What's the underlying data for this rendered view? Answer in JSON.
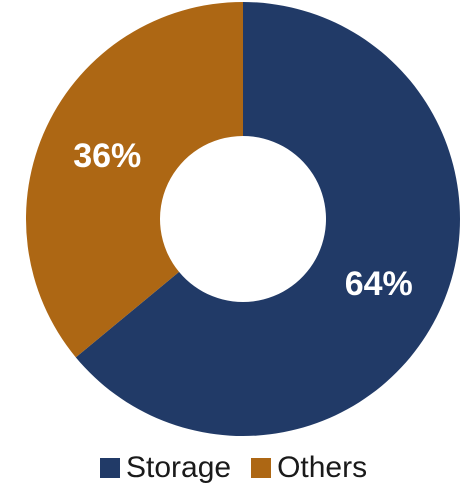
{
  "chart_data": {
    "type": "pie",
    "variant": "donut",
    "title": "",
    "categories": [
      "Storage",
      "Others"
    ],
    "values": [
      64,
      36
    ],
    "labels": [
      "64%",
      "36%"
    ],
    "colors": [
      "#213a67",
      "#ad6714"
    ],
    "legend": {
      "placement": "bottom",
      "items": [
        {
          "label": "Storage",
          "color": "#213a67"
        },
        {
          "label": "Others",
          "color": "#ad6714"
        }
      ]
    }
  }
}
